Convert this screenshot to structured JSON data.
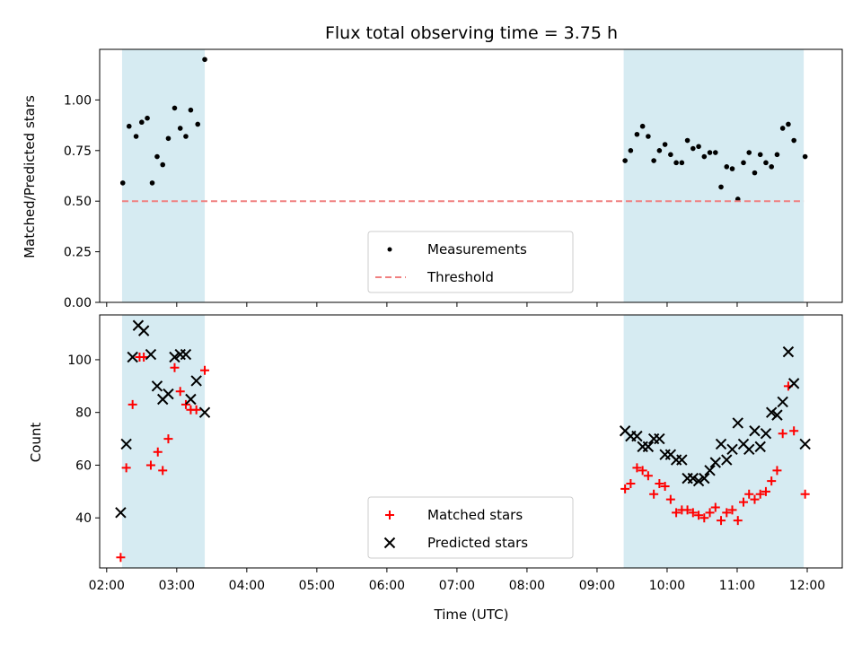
{
  "chart_data": {
    "title": "Flux total observing time = 3.75 h",
    "xlabel": "Time (UTC)",
    "x_ticks": [
      "02:00",
      "03:00",
      "04:00",
      "05:00",
      "06:00",
      "07:00",
      "08:00",
      "09:00",
      "10:00",
      "11:00",
      "12:00"
    ],
    "xlim_hours": [
      1.9,
      12.5
    ],
    "shaded_intervals": [
      [
        2.22,
        3.4
      ],
      [
        9.38,
        11.95
      ]
    ],
    "shade_color": "#add8e6",
    "panels": [
      {
        "type": "scatter",
        "ylabel": "Matched/Predicted stars",
        "ylim": [
          0,
          1.25
        ],
        "y_ticks": [
          "0.00",
          "0.25",
          "0.50",
          "0.75",
          "1.00"
        ],
        "y_tick_values": [
          0,
          0.25,
          0.5,
          0.75,
          1.0
        ],
        "legend_position": "lower-center",
        "series": [
          {
            "name": "Measurements",
            "marker": "dot",
            "color": "#000000",
            "points": [
              [
                2.23,
                0.59
              ],
              [
                2.32,
                0.87
              ],
              [
                2.42,
                0.82
              ],
              [
                2.5,
                0.89
              ],
              [
                2.58,
                0.91
              ],
              [
                2.65,
                0.59
              ],
              [
                2.72,
                0.72
              ],
              [
                2.8,
                0.68
              ],
              [
                2.88,
                0.81
              ],
              [
                2.97,
                0.96
              ],
              [
                3.05,
                0.86
              ],
              [
                3.13,
                0.82
              ],
              [
                3.2,
                0.95
              ],
              [
                3.3,
                0.88
              ],
              [
                3.4,
                1.2
              ],
              [
                9.4,
                0.7
              ],
              [
                9.48,
                0.75
              ],
              [
                9.57,
                0.83
              ],
              [
                9.65,
                0.87
              ],
              [
                9.73,
                0.82
              ],
              [
                9.81,
                0.7
              ],
              [
                9.89,
                0.75
              ],
              [
                9.97,
                0.78
              ],
              [
                10.05,
                0.73
              ],
              [
                10.13,
                0.69
              ],
              [
                10.21,
                0.69
              ],
              [
                10.29,
                0.8
              ],
              [
                10.37,
                0.76
              ],
              [
                10.45,
                0.77
              ],
              [
                10.53,
                0.72
              ],
              [
                10.61,
                0.74
              ],
              [
                10.69,
                0.74
              ],
              [
                10.77,
                0.57
              ],
              [
                10.85,
                0.67
              ],
              [
                10.93,
                0.66
              ],
              [
                11.01,
                0.51
              ],
              [
                11.09,
                0.69
              ],
              [
                11.17,
                0.74
              ],
              [
                11.25,
                0.64
              ],
              [
                11.33,
                0.73
              ],
              [
                11.41,
                0.69
              ],
              [
                11.49,
                0.67
              ],
              [
                11.57,
                0.73
              ],
              [
                11.65,
                0.86
              ],
              [
                11.73,
                0.88
              ],
              [
                11.81,
                0.8
              ],
              [
                11.97,
                0.72
              ]
            ]
          },
          {
            "name": "Threshold",
            "marker": "dashed-line",
            "color": "#f08080",
            "points": [
              [
                2.22,
                0.5
              ],
              [
                11.95,
                0.5
              ]
            ]
          }
        ]
      },
      {
        "type": "scatter",
        "ylabel": "Count",
        "ylim": [
          21,
          117
        ],
        "y_ticks": [
          "40",
          "60",
          "80",
          "100"
        ],
        "y_tick_values": [
          40,
          60,
          80,
          100
        ],
        "legend_position": "lower-center",
        "series": [
          {
            "name": "Matched stars",
            "marker": "plus",
            "color": "#ff0000",
            "points": [
              [
                2.2,
                25
              ],
              [
                2.28,
                59
              ],
              [
                2.37,
                83
              ],
              [
                2.47,
                101
              ],
              [
                2.53,
                101
              ],
              [
                2.63,
                60
              ],
              [
                2.73,
                65
              ],
              [
                2.8,
                58
              ],
              [
                2.88,
                70
              ],
              [
                2.97,
                97
              ],
              [
                3.05,
                88
              ],
              [
                3.13,
                83
              ],
              [
                3.2,
                81
              ],
              [
                3.28,
                81
              ],
              [
                3.4,
                96
              ],
              [
                9.4,
                51
              ],
              [
                9.48,
                53
              ],
              [
                9.57,
                59
              ],
              [
                9.65,
                58
              ],
              [
                9.73,
                56
              ],
              [
                9.81,
                49
              ],
              [
                9.89,
                53
              ],
              [
                9.97,
                52
              ],
              [
                10.05,
                47
              ],
              [
                10.13,
                42
              ],
              [
                10.21,
                43
              ],
              [
                10.29,
                43
              ],
              [
                10.37,
                42
              ],
              [
                10.45,
                41
              ],
              [
                10.53,
                40
              ],
              [
                10.61,
                42
              ],
              [
                10.69,
                44
              ],
              [
                10.77,
                39
              ],
              [
                10.85,
                42
              ],
              [
                10.93,
                43
              ],
              [
                11.01,
                39
              ],
              [
                11.09,
                46
              ],
              [
                11.17,
                49
              ],
              [
                11.25,
                47
              ],
              [
                11.33,
                49
              ],
              [
                11.41,
                50
              ],
              [
                11.49,
                54
              ],
              [
                11.57,
                58
              ],
              [
                11.65,
                72
              ],
              [
                11.73,
                90
              ],
              [
                11.81,
                73
              ],
              [
                11.97,
                49
              ]
            ]
          },
          {
            "name": "Predicted stars",
            "marker": "cross",
            "color": "#000000",
            "points": [
              [
                2.2,
                42
              ],
              [
                2.28,
                68
              ],
              [
                2.37,
                101
              ],
              [
                2.45,
                113
              ],
              [
                2.53,
                111
              ],
              [
                2.63,
                102
              ],
              [
                2.72,
                90
              ],
              [
                2.8,
                85
              ],
              [
                2.88,
                87
              ],
              [
                2.97,
                101
              ],
              [
                3.05,
                102
              ],
              [
                3.13,
                102
              ],
              [
                3.2,
                85
              ],
              [
                3.28,
                92
              ],
              [
                3.4,
                80
              ],
              [
                9.4,
                73
              ],
              [
                9.48,
                71
              ],
              [
                9.57,
                71
              ],
              [
                9.65,
                67
              ],
              [
                9.73,
                67
              ],
              [
                9.81,
                70
              ],
              [
                9.89,
                70
              ],
              [
                9.97,
                64
              ],
              [
                10.05,
                64
              ],
              [
                10.13,
                62
              ],
              [
                10.21,
                62
              ],
              [
                10.29,
                55
              ],
              [
                10.37,
                55
              ],
              [
                10.45,
                54
              ],
              [
                10.53,
                55
              ],
              [
                10.61,
                58
              ],
              [
                10.69,
                61
              ],
              [
                10.77,
                68
              ],
              [
                10.85,
                62
              ],
              [
                10.93,
                66
              ],
              [
                11.01,
                76
              ],
              [
                11.09,
                68
              ],
              [
                11.17,
                66
              ],
              [
                11.25,
                73
              ],
              [
                11.33,
                67
              ],
              [
                11.41,
                72
              ],
              [
                11.49,
                80
              ],
              [
                11.57,
                79
              ],
              [
                11.65,
                84
              ],
              [
                11.73,
                103
              ],
              [
                11.81,
                91
              ],
              [
                11.97,
                68
              ]
            ]
          }
        ]
      }
    ]
  }
}
